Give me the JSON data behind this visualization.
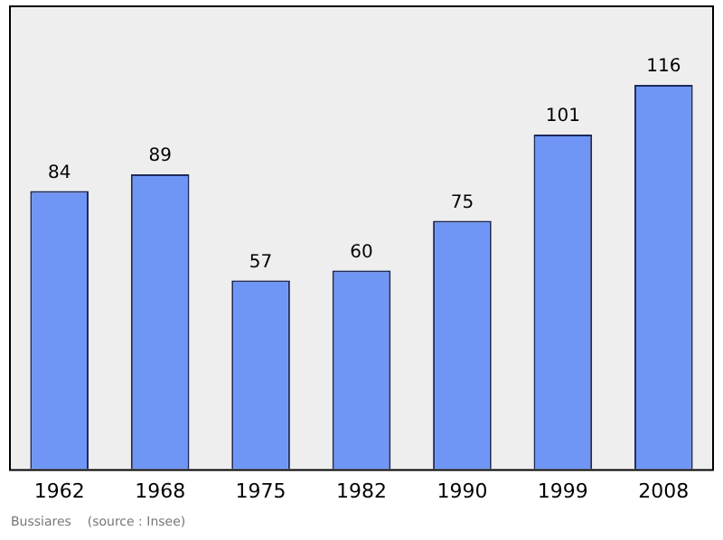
{
  "chart_data": {
    "type": "bar",
    "categories": [
      "1962",
      "1968",
      "1975",
      "1982",
      "1990",
      "1999",
      "2008"
    ],
    "values": [
      84,
      89,
      57,
      60,
      75,
      101,
      116
    ],
    "color": "#6f96f5",
    "data_labels": true,
    "grid": false,
    "legend": false,
    "annotations": [
      "Bussiares    (source : Insee)"
    ]
  }
}
